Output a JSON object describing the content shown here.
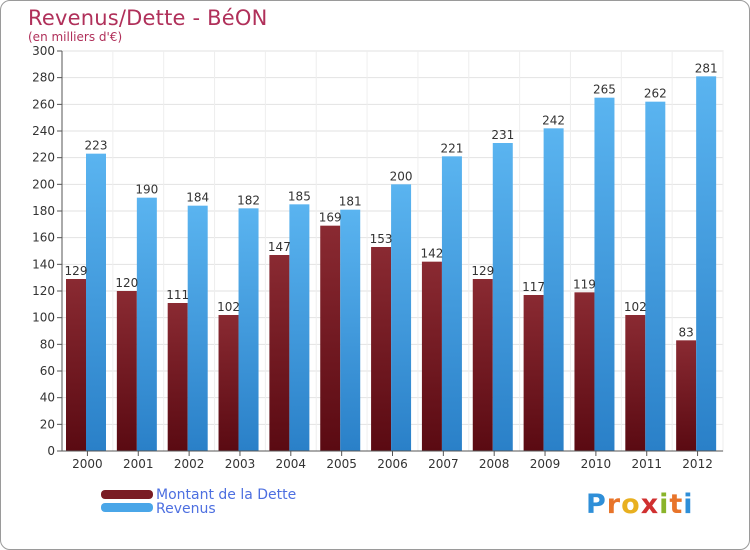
{
  "header": {
    "title": "Revenus/Dette - BéON",
    "subtitle": "(en milliers d'€)"
  },
  "chart_data": {
    "type": "bar",
    "title": "Revenus/Dette - BéON",
    "ylabel": "(en milliers d'€)",
    "xlabel": "",
    "ylim": [
      0,
      300
    ],
    "ytick_step": 20,
    "grid": true,
    "legend_position": "bottom-left",
    "categories": [
      "2000",
      "2001",
      "2002",
      "2003",
      "2004",
      "2005",
      "2006",
      "2007",
      "2008",
      "2009",
      "2010",
      "2011",
      "2012"
    ],
    "series": [
      {
        "name": "Montant de la Dette",
        "color": "#7a1c24",
        "values": [
          129,
          120,
          111,
          102,
          147,
          169,
          153,
          142,
          129,
          117,
          119,
          102,
          83
        ]
      },
      {
        "name": "Revenus",
        "color": "#4aa6e8",
        "values": [
          223,
          190,
          184,
          182,
          185,
          181,
          200,
          221,
          231,
          242,
          265,
          262,
          281
        ]
      }
    ]
  },
  "legend": {
    "items": [
      {
        "label": "Montant de la Dette",
        "color": "#7a1c24"
      },
      {
        "label": "Revenus",
        "color": "#4aa6e8"
      }
    ]
  },
  "logo": {
    "text": "Proxiti",
    "letter_colors": [
      "#2f8fd8",
      "#e8742a",
      "#e8b020",
      "#d03030",
      "#8ab42a",
      "#e8742a",
      "#2f8fd8"
    ]
  }
}
